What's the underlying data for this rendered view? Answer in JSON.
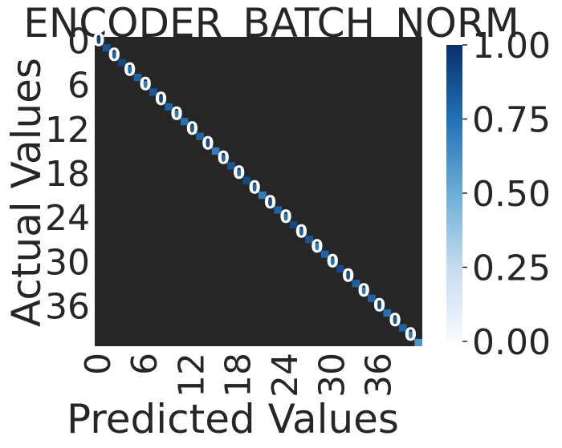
{
  "title": "ENCODER_BATCH_NORM",
  "chart_data": {
    "type": "heatmap",
    "title": "ENCODER_BATCH_NORM",
    "xlabel": "Predicted Values",
    "ylabel": "Actual Values",
    "n_classes": 42,
    "x_tick_labels": [
      "0",
      "6",
      "12",
      "18",
      "24",
      "30",
      "36"
    ],
    "y_tick_labels": [
      "0",
      "6",
      "12",
      "18",
      "24",
      "30",
      "36"
    ],
    "colorbar": {
      "min": 0.0,
      "max": 1.0,
      "ticks": [
        "0.00",
        "0.25",
        "0.50",
        "0.75",
        "1.00"
      ]
    },
    "colormap": "Blues",
    "colors": {
      "low": "#f7fbff",
      "high": "#08306b",
      "cell_bg": "#262626",
      "text": "#262626"
    },
    "diagonal_values": [
      0.9,
      0.85,
      0.8,
      0.9,
      0.75,
      0.8,
      0.7,
      0.85,
      0.9,
      0.8,
      0.7,
      0.75,
      0.85,
      0.8,
      0.9,
      0.7,
      0.8,
      0.85,
      0.75,
      0.9,
      0.8,
      0.7,
      0.85,
      0.8,
      0.75,
      0.9,
      0.8,
      0.85,
      0.7,
      0.8,
      0.75,
      0.9,
      0.85,
      0.8,
      0.7,
      0.8,
      0.9,
      0.75,
      0.85,
      0.8,
      0.7,
      0.6
    ],
    "off_diagonal_value": 0.0
  }
}
